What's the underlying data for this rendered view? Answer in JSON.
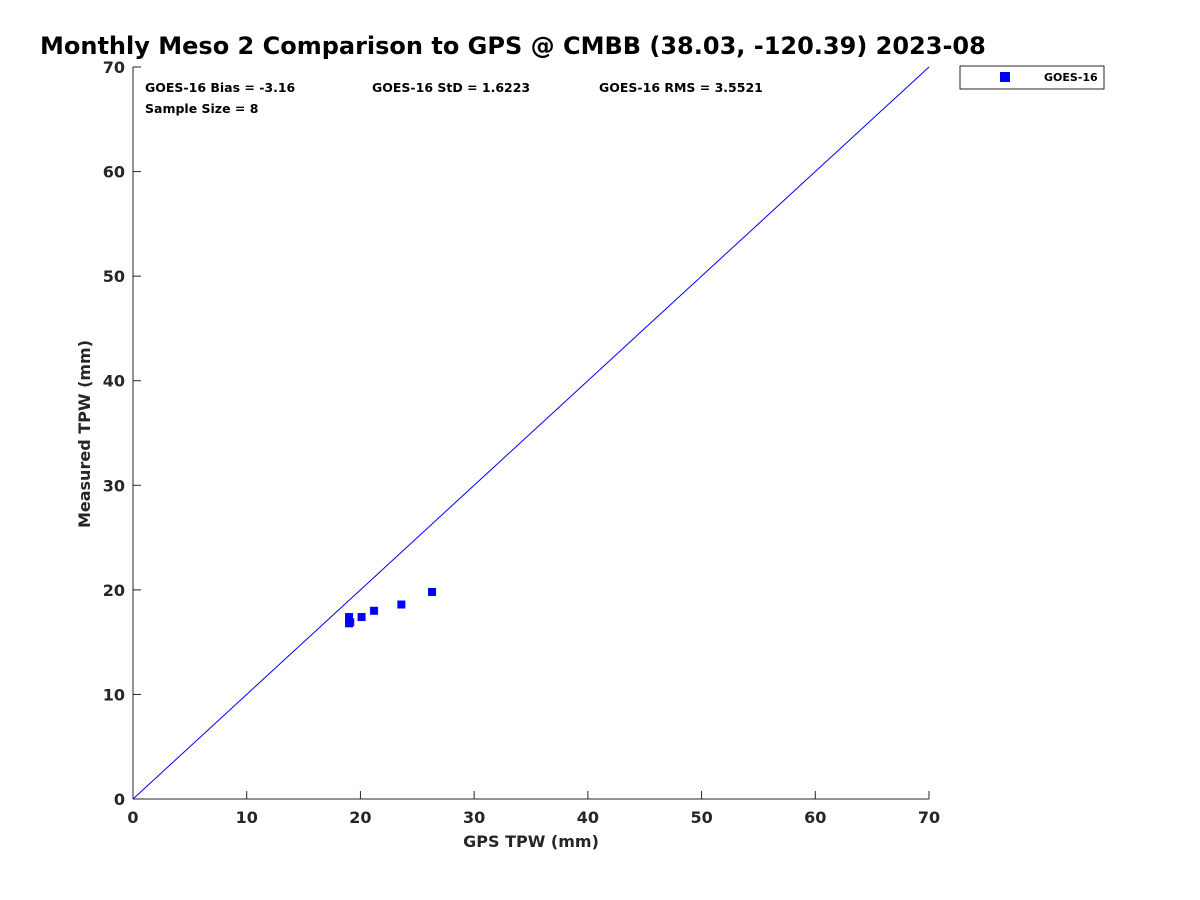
{
  "chart_data": {
    "type": "scatter",
    "title": "Monthly Meso 2 Comparison to GPS @ CMBB (38.03, -120.39) 2023-08",
    "xlabel": "GPS TPW (mm)",
    "ylabel": "Measured TPW (mm)",
    "xlim": [
      0,
      70
    ],
    "ylim": [
      0,
      70
    ],
    "xticks": [
      "0",
      "10",
      "20",
      "30",
      "40",
      "50",
      "60",
      "70"
    ],
    "yticks": [
      "0",
      "10",
      "20",
      "30",
      "40",
      "50",
      "60",
      "70"
    ],
    "grid": false,
    "legend_position": "outside-top-right",
    "reference_line": {
      "x": [
        0,
        70
      ],
      "y": [
        0,
        70
      ],
      "color": "#0000ff"
    },
    "series": [
      {
        "name": "GOES-16",
        "marker": "square",
        "color": "#0000ff",
        "x": [
          19.0,
          19.0,
          19.1,
          20.1,
          21.2,
          23.6,
          26.3,
          19.0
        ],
        "y": [
          16.8,
          17.4,
          16.9,
          17.4,
          18.0,
          18.6,
          19.8,
          17.0
        ]
      }
    ],
    "stats": {
      "bias": "GOES-16 Bias = -3.16",
      "std": "GOES-16 StD = 1.6223",
      "rms": "GOES-16 RMS = 3.5521",
      "sample_size": "Sample Size = 8"
    }
  }
}
